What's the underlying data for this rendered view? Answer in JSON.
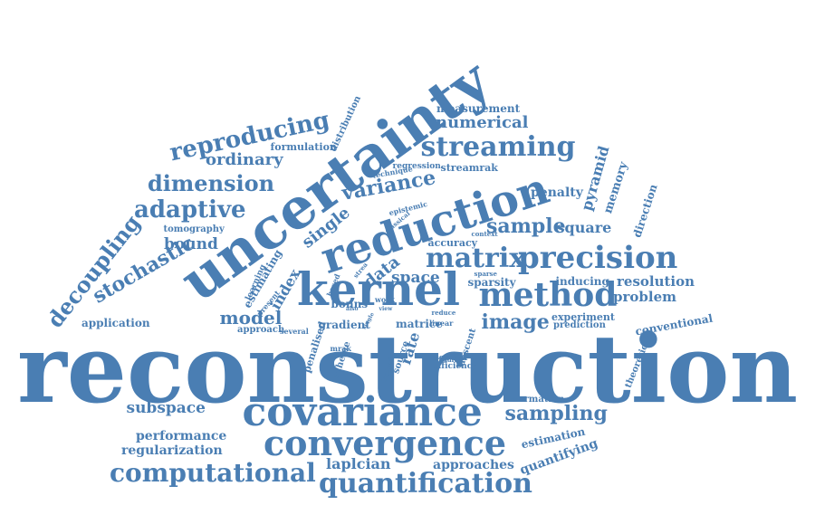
{
  "color": "#4a7eb3",
  "words": [
    "reconstruction",
    "uncertainty",
    "reduction",
    "kernel",
    "covariance",
    "convergence",
    "method",
    "precision",
    "matrix",
    "streaming",
    "quantification",
    "computational",
    "reproducing",
    "dimension",
    "adaptive",
    "decoupling",
    "stochastic",
    "variance",
    "sample",
    "sampling",
    "image",
    "model",
    "ordinary",
    "bound",
    "subspace",
    "regularization",
    "performance",
    "laplcian",
    "approaches",
    "quantifying",
    "estimation",
    "numerical",
    "measurement",
    "pyramid",
    "memory",
    "direction",
    "penalty",
    "square",
    "resolution",
    "problem",
    "inducing",
    "sparsity",
    "space",
    "single",
    "data",
    "index",
    "estimating",
    "application",
    "tomography",
    "formulation",
    "distribution",
    "technique",
    "regression",
    "streamrak",
    "epistemic",
    "classical",
    "accuracy",
    "context",
    "gradient",
    "matrice",
    "experiment",
    "prediction",
    "conventional",
    "information",
    "theoretical",
    "penalised",
    "scheme",
    "rate",
    "source",
    "limited",
    "descent",
    "popular",
    "efficiency",
    "approach",
    "several",
    "bonns",
    "based",
    "work",
    "view",
    "also",
    "linear",
    "reduce",
    "result",
    "sparse",
    "learning",
    "present",
    "mrak",
    "single",
    "strea"
  ]
}
